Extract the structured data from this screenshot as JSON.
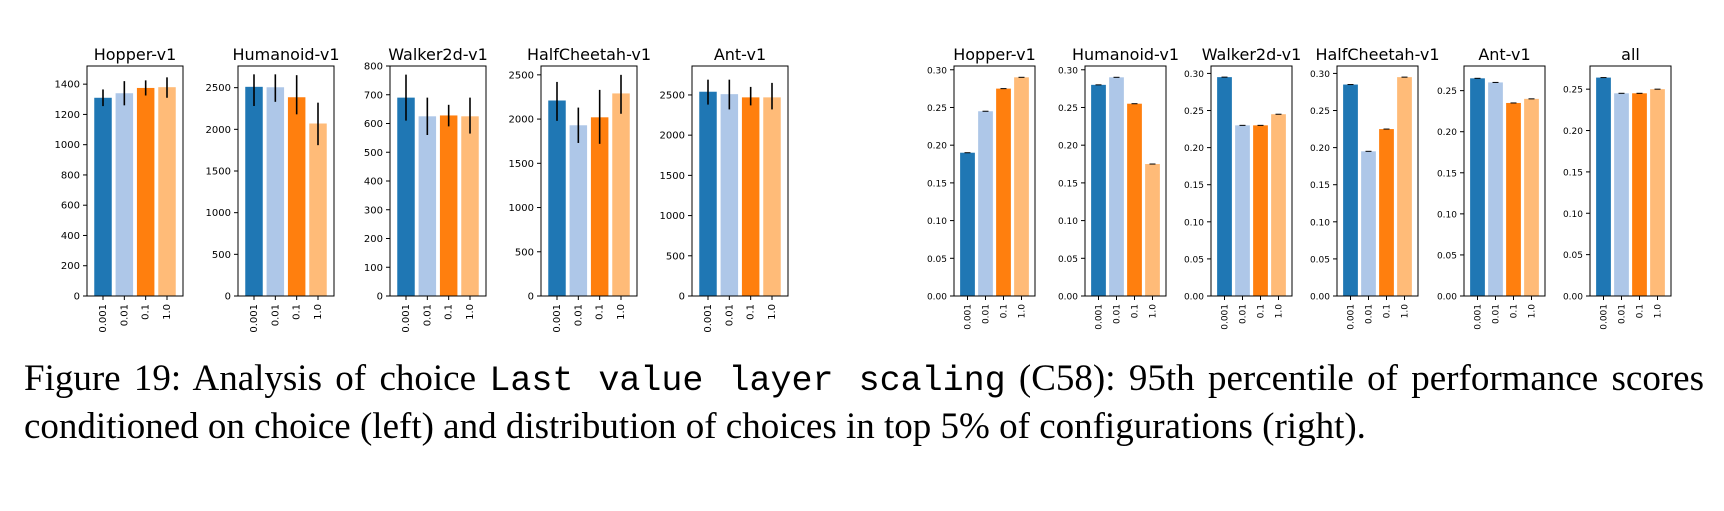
{
  "caption": {
    "label": "Figure 19:",
    "pre": " Analysis of choice ",
    "code": "Last value layer scaling",
    "post": " (C58): 95th percentile of performance scores conditioned on choice (left) and distribution of choices in top 5% of configurations (right)."
  },
  "colors": [
    "#1f77b4",
    "#aec7e8",
    "#ff7f0e",
    "#ffbb78"
  ],
  "chart_data": [
    {
      "type": "bar",
      "panel": "left",
      "title": "Hopper-v1",
      "categories": [
        "0.001",
        "0.01",
        "0.1",
        "1.0"
      ],
      "values": [
        1310,
        1340,
        1375,
        1380
      ],
      "errors": [
        [
          1255,
          1365
        ],
        [
          1260,
          1420
        ],
        [
          1325,
          1425
        ],
        [
          1310,
          1445
        ]
      ],
      "ylim": [
        0,
        1520
      ],
      "yticks": [
        0,
        200,
        400,
        600,
        800,
        1000,
        1200,
        1400
      ]
    },
    {
      "type": "bar",
      "panel": "left",
      "title": "Humanoid-v1",
      "categories": [
        "0.001",
        "0.01",
        "0.1",
        "1.0"
      ],
      "values": [
        2510,
        2505,
        2385,
        2070
      ],
      "errors": [
        [
          2280,
          2660
        ],
        [
          2330,
          2660
        ],
        [
          2180,
          2650
        ],
        [
          1810,
          2320
        ]
      ],
      "ylim": [
        0,
        2760
      ],
      "yticks": [
        0,
        500,
        1000,
        1500,
        2000,
        2500
      ]
    },
    {
      "type": "bar",
      "panel": "left",
      "title": "Walker2d-v1",
      "categories": [
        "0.001",
        "0.01",
        "0.1",
        "1.0"
      ],
      "values": [
        690,
        625,
        628,
        625
      ],
      "errors": [
        [
          610,
          770
        ],
        [
          560,
          690
        ],
        [
          590,
          665
        ],
        [
          565,
          690
        ]
      ],
      "ylim": [
        0,
        800
      ],
      "yticks": [
        0,
        100,
        200,
        300,
        400,
        500,
        600,
        700,
        800
      ]
    },
    {
      "type": "bar",
      "panel": "left",
      "title": "HalfCheetah-v1",
      "categories": [
        "0.001",
        "0.01",
        "0.1",
        "1.0"
      ],
      "values": [
        2210,
        1930,
        2020,
        2290
      ],
      "errors": [
        [
          1980,
          2420
        ],
        [
          1730,
          2130
        ],
        [
          1720,
          2330
        ],
        [
          2060,
          2500
        ]
      ],
      "ylim": [
        0,
        2600
      ],
      "yticks": [
        0,
        500,
        1000,
        1500,
        2000,
        2500
      ]
    },
    {
      "type": "bar",
      "panel": "left",
      "title": "Ant-v1",
      "categories": [
        "0.001",
        "0.01",
        "0.1",
        "1.0"
      ],
      "values": [
        2540,
        2510,
        2470,
        2470
      ],
      "errors": [
        [
          2380,
          2690
        ],
        [
          2320,
          2690
        ],
        [
          2370,
          2600
        ],
        [
          2320,
          2650
        ]
      ],
      "ylim": [
        0,
        2860
      ],
      "yticks": [
        0,
        500,
        1000,
        1500,
        2000,
        2500
      ]
    },
    {
      "type": "bar",
      "panel": "right",
      "title": "Hopper-v1",
      "categories": [
        "0.001",
        "0.01",
        "0.1",
        "1.0"
      ],
      "values": [
        0.19,
        0.245,
        0.275,
        0.29
      ],
      "ylim": [
        0,
        0.305
      ],
      "yticks": [
        "0.00",
        "0.05",
        "0.10",
        "0.15",
        "0.20",
        "0.25",
        "0.30"
      ]
    },
    {
      "type": "bar",
      "panel": "right",
      "title": "Humanoid-v1",
      "categories": [
        "0.001",
        "0.01",
        "0.1",
        "1.0"
      ],
      "values": [
        0.28,
        0.29,
        0.255,
        0.175
      ],
      "ylim": [
        0,
        0.305
      ],
      "yticks": [
        "0.00",
        "0.05",
        "0.10",
        "0.15",
        "0.20",
        "0.25",
        "0.30"
      ]
    },
    {
      "type": "bar",
      "panel": "right",
      "title": "Walker2d-v1",
      "categories": [
        "0.001",
        "0.01",
        "0.1",
        "1.0"
      ],
      "values": [
        0.295,
        0.23,
        0.23,
        0.245
      ],
      "ylim": [
        0,
        0.31
      ],
      "yticks": [
        "0.00",
        "0.05",
        "0.10",
        "0.15",
        "0.20",
        "0.25",
        "0.30"
      ]
    },
    {
      "type": "bar",
      "panel": "right",
      "title": "HalfCheetah-v1",
      "categories": [
        "0.001",
        "0.01",
        "0.1",
        "1.0"
      ],
      "values": [
        0.285,
        0.195,
        0.225,
        0.295
      ],
      "ylim": [
        0,
        0.31
      ],
      "yticks": [
        "0.00",
        "0.05",
        "0.10",
        "0.15",
        "0.20",
        "0.25",
        "0.30"
      ]
    },
    {
      "type": "bar",
      "panel": "right",
      "title": "Ant-v1",
      "categories": [
        "0.001",
        "0.01",
        "0.1",
        "1.0"
      ],
      "values": [
        0.265,
        0.26,
        0.235,
        0.24
      ],
      "ylim": [
        0,
        0.28
      ],
      "yticks": [
        "0.00",
        "0.05",
        "0.10",
        "0.15",
        "0.20",
        "0.25"
      ]
    },
    {
      "type": "bar",
      "panel": "right",
      "title": "all",
      "categories": [
        "0.001",
        "0.01",
        "0.1",
        "1.0"
      ],
      "values": [
        0.264,
        0.245,
        0.245,
        0.25
      ],
      "ylim": [
        0,
        0.278
      ],
      "yticks": [
        "0.00",
        "0.05",
        "0.10",
        "0.15",
        "0.20",
        "0.25"
      ]
    }
  ]
}
